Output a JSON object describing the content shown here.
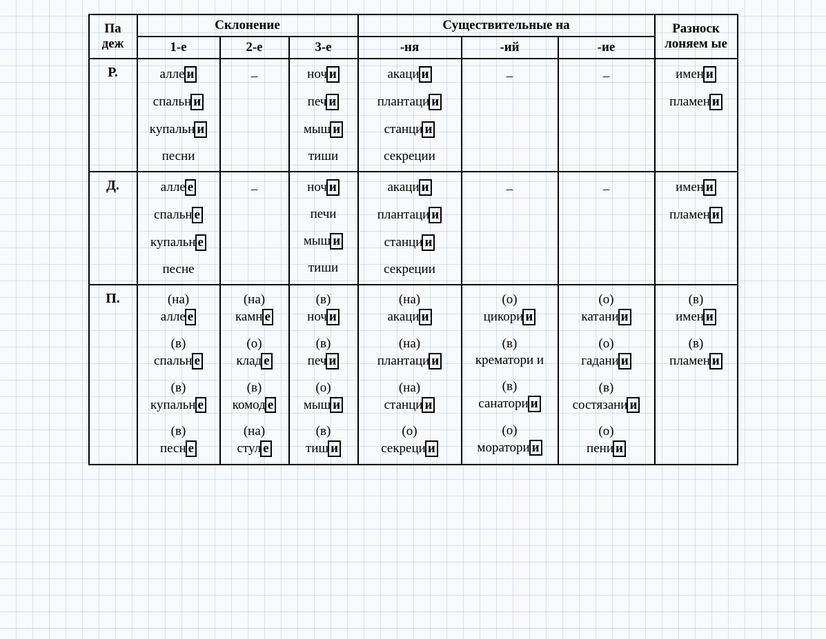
{
  "headers": {
    "case": "Па деж",
    "declension": "Склонение",
    "decl_1": "1-е",
    "decl_2": "2-е",
    "decl_3": "3-е",
    "nouns_on": "Существительные на",
    "nya": "-ня",
    "iy": "-ий",
    "ie": "-ие",
    "hetero": "Разноск лоняем ые"
  },
  "col_widths": {
    "case": 56,
    "decl_1": 120,
    "decl_2": 100,
    "decl_3": 100,
    "nya": 150,
    "iy": 140,
    "ie": 140,
    "hetero": 120
  },
  "rows": [
    {
      "case": "Р.",
      "decl_1": [
        {
          "text": "алле",
          "suffix": "и"
        },
        {
          "text": "спальн",
          "suffix": "и"
        },
        {
          "text": "купальн",
          "suffix": "и"
        },
        {
          "text": "песни"
        }
      ],
      "decl_2": "–",
      "decl_3": [
        {
          "text": "ноч",
          "suffix": "и"
        },
        {
          "text": "печ",
          "suffix": "и"
        },
        {
          "text": "мыш",
          "suffix": "и"
        },
        {
          "text": "тиши"
        }
      ],
      "nya": [
        {
          "text": "акаци",
          "suffix": "и"
        },
        {
          "text": "плантаци",
          "suffix": "и"
        },
        {
          "text": "станци",
          "suffix": "и"
        },
        {
          "text": "секреции"
        }
      ],
      "iy": "–",
      "ie": "–",
      "hetero": [
        {
          "text": "имен",
          "suffix": "и"
        },
        {
          "text": "пламен",
          "suffix": "и"
        }
      ]
    },
    {
      "case": "Д.",
      "decl_1": [
        {
          "text": "алле",
          "suffix": "е"
        },
        {
          "text": "спальн",
          "suffix": "е"
        },
        {
          "text": "купальн",
          "suffix": "е"
        },
        {
          "text": "песне"
        }
      ],
      "decl_2": "–",
      "decl_3": [
        {
          "text": "ноч",
          "suffix": "и"
        },
        {
          "text": "печи"
        },
        {
          "text": "мыш",
          "suffix": "и"
        },
        {
          "text": "тиши"
        }
      ],
      "nya": [
        {
          "text": "акаци",
          "suffix": "и"
        },
        {
          "text": "плантаци",
          "suffix": "и"
        },
        {
          "text": "станци",
          "suffix": "и"
        },
        {
          "text": "секреции"
        }
      ],
      "iy": "–",
      "ie": "–",
      "hetero": [
        {
          "text": "имен",
          "suffix": "и"
        },
        {
          "text": "пламен",
          "suffix": "и"
        }
      ]
    },
    {
      "case": "П.",
      "decl_1": [
        {
          "prefix": "(на)",
          "text": "алле",
          "suffix": "е"
        },
        {
          "prefix": "(в)",
          "text": "спальн",
          "suffix": "е"
        },
        {
          "prefix": "(в)",
          "text": "купальн",
          "suffix": "е"
        },
        {
          "prefix": "(в)",
          "text": "песн",
          "suffix": "е"
        }
      ],
      "decl_2": [
        {
          "prefix": "(на)",
          "text": "камн",
          "suffix": "е"
        },
        {
          "prefix": "(о)",
          "text": "клад",
          "suffix": "е"
        },
        {
          "prefix": "(в)",
          "text": "комод",
          "suffix": "е"
        },
        {
          "prefix": "(на)",
          "text": "стул",
          "suffix": "е"
        }
      ],
      "decl_3": [
        {
          "prefix": "(в)",
          "text": "ноч",
          "suffix": "и"
        },
        {
          "prefix": "(в)",
          "text": "печ",
          "suffix": "и"
        },
        {
          "prefix": "(о)",
          "text": "мыш",
          "suffix": "и"
        },
        {
          "prefix": "(в)",
          "text": "тиш",
          "suffix": "и"
        }
      ],
      "nya": [
        {
          "prefix": "(на)",
          "text": "акаци",
          "suffix": "и"
        },
        {
          "prefix": "(на)",
          "text": "плантаци",
          "suffix": "и"
        },
        {
          "prefix": "(на)",
          "text": "станци",
          "suffix": "и"
        },
        {
          "prefix": "(о)",
          "text": "секреци",
          "suffix": "и"
        }
      ],
      "iy": [
        {
          "prefix": "(о)",
          "text": "цикори",
          "suffix": "и"
        },
        {
          "prefix": "(в)",
          "text": "крематори и"
        },
        {
          "prefix": "(в)",
          "text": "санатори",
          "suffix": "и"
        },
        {
          "prefix": "(о)",
          "text": "моратори",
          "suffix": "и"
        }
      ],
      "ie": [
        {
          "prefix": "(о)",
          "text": "катани",
          "suffix": "и"
        },
        {
          "prefix": "(о)",
          "text": "гадани",
          "suffix": "и"
        },
        {
          "prefix": "(в)",
          "text": "состязани",
          "suffix": "и"
        },
        {
          "prefix": "(о)",
          "text": "пени",
          "suffix": "и"
        }
      ],
      "hetero": [
        {
          "prefix": "(в)",
          "text": "имен",
          "suffix": "и"
        },
        {
          "prefix": "(в)",
          "text": "пламен",
          "suffix": "и"
        }
      ]
    }
  ]
}
